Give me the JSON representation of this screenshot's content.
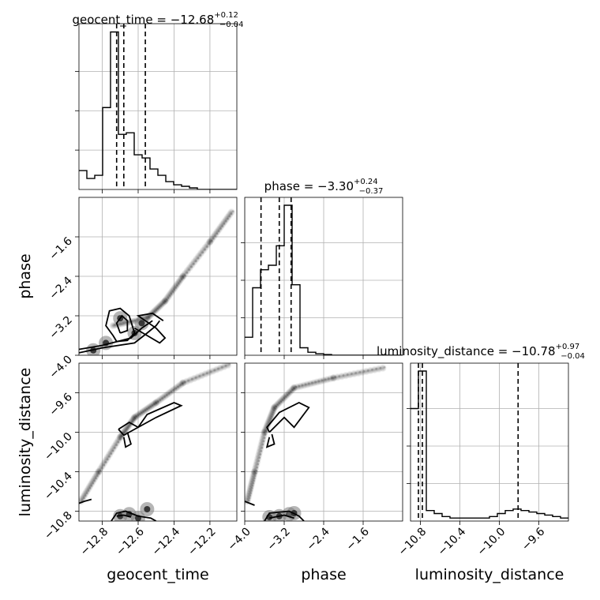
{
  "chart_data": {
    "type": "corner",
    "parameters": [
      "geocent_time",
      "phase",
      "luminosity_distance"
    ],
    "titles": [
      {
        "param": "geocent_time",
        "main": "geocent_time = −12.68",
        "plus": "+0.12",
        "minus": "−0.04"
      },
      {
        "param": "phase",
        "main": "phase = −3.30",
        "plus": "+0.24",
        "minus": "−0.37"
      },
      {
        "param": "luminosity_distance",
        "main": "luminosity_distance = −10.78",
        "plus": "+0.97",
        "minus": "−0.04"
      }
    ],
    "axes": {
      "geocent_time": {
        "range": [
          -12.93,
          -12.05
        ],
        "ticks": [
          -12.8,
          -12.6,
          -12.4,
          -12.2
        ],
        "tick_labels": [
          "−12.8",
          "−12.6",
          "−12.4",
          "−12.2"
        ]
      },
      "phase": {
        "range": [
          -4.0,
          -0.8
        ],
        "ticks": [
          -4.0,
          -3.2,
          -2.4,
          -1.6
        ],
        "tick_labels": [
          "−4.0",
          "−3.2",
          "−2.4",
          "−1.6"
        ]
      },
      "luminosity_distance": {
        "range": [
          -10.9,
          -9.3
        ],
        "ticks": [
          -10.8,
          -10.4,
          -10.0,
          -9.6
        ],
        "tick_labels": [
          "−10.8",
          "−10.4",
          "−10.0",
          "−9.6"
        ]
      }
    },
    "histograms": {
      "geocent_time": {
        "edges": [
          -12.93,
          -12.886,
          -12.842,
          -12.798,
          -12.754,
          -12.71,
          -12.666,
          -12.622,
          -12.578,
          -12.534,
          -12.49,
          -12.446,
          -12.402,
          -12.358,
          -12.314,
          -12.27,
          -12.226,
          -12.182,
          -12.138,
          -12.094,
          -12.05
        ],
        "counts": [
          0.12,
          0.07,
          0.09,
          0.52,
          1.0,
          0.35,
          0.36,
          0.22,
          0.2,
          0.13,
          0.09,
          0.05,
          0.03,
          0.02,
          0.01,
          0.0,
          0.0,
          0.0,
          0.0,
          0.0
        ],
        "quantiles": [
          -12.72,
          -12.68,
          -12.56
        ]
      },
      "phase": {
        "edges": [
          -4.0,
          -3.84,
          -3.68,
          -3.52,
          -3.36,
          -3.2,
          -3.04,
          -2.88,
          -2.72,
          -2.56,
          -2.4,
          -2.24,
          -2.08,
          -1.92,
          -1.76,
          -1.6,
          -1.44,
          -1.28,
          -1.12,
          -0.96,
          -0.8
        ],
        "counts": [
          0.12,
          0.45,
          0.57,
          0.6,
          0.73,
          1.0,
          0.47,
          0.05,
          0.02,
          0.01,
          0.005,
          0.0,
          0.0,
          0.0,
          0.0,
          0.0,
          0.0,
          0.0,
          0.0,
          0.0
        ],
        "quantiles": [
          -3.67,
          -3.3,
          -3.06
        ]
      },
      "luminosity_distance": {
        "edges": [
          -10.9,
          -10.82,
          -10.74,
          -10.66,
          -10.58,
          -10.5,
          -10.42,
          -10.34,
          -10.26,
          -10.18,
          -10.1,
          -10.02,
          -9.94,
          -9.86,
          -9.78,
          -9.7,
          -9.62,
          -9.54,
          -9.46,
          -9.38,
          -9.3
        ],
        "counts": [
          0.75,
          1.0,
          0.07,
          0.05,
          0.03,
          0.02,
          0.02,
          0.02,
          0.02,
          0.02,
          0.03,
          0.05,
          0.07,
          0.08,
          0.07,
          0.06,
          0.05,
          0.04,
          0.03,
          0.02
        ],
        "quantiles": [
          -10.82,
          -10.78,
          -9.81
        ]
      }
    },
    "scatter_clouds": [
      {
        "x_param": "geocent_time",
        "y_param": "phase",
        "trend": [
          [
            -12.74,
            -3.4
          ],
          [
            -12.55,
            -3.25
          ],
          [
            -12.45,
            -2.9
          ],
          [
            -12.35,
            -2.4
          ],
          [
            -12.2,
            -1.7
          ],
          [
            -12.08,
            -1.1
          ]
        ],
        "core_points": [
          [
            -12.7,
            -3.25
          ],
          [
            -12.62,
            -3.55
          ],
          [
            -12.58,
            -3.35
          ],
          [
            -12.78,
            -3.75
          ],
          [
            -12.85,
            -3.9
          ]
        ]
      },
      {
        "x_param": "geocent_time",
        "y_param": "luminosity_distance",
        "trend": [
          [
            -12.92,
            -10.7
          ],
          [
            -12.82,
            -10.4
          ],
          [
            -12.7,
            -10.05
          ],
          [
            -12.62,
            -9.85
          ],
          [
            -12.5,
            -9.7
          ],
          [
            -12.35,
            -9.5
          ],
          [
            -12.1,
            -9.32
          ]
        ],
        "core_points": [
          [
            -12.7,
            -10.85
          ],
          [
            -12.65,
            -10.83
          ],
          [
            -12.55,
            -10.78
          ],
          [
            -12.6,
            -10.87
          ]
        ]
      },
      {
        "x_param": "phase",
        "y_param": "luminosity_distance",
        "trend": [
          [
            -3.95,
            -10.7
          ],
          [
            -3.8,
            -10.4
          ],
          [
            -3.6,
            -10.0
          ],
          [
            -3.4,
            -9.75
          ],
          [
            -3.0,
            -9.55
          ],
          [
            -2.2,
            -9.45
          ],
          [
            -1.2,
            -9.35
          ]
        ],
        "core_points": [
          [
            -3.3,
            -10.85
          ],
          [
            -3.1,
            -10.83
          ],
          [
            -3.5,
            -10.86
          ],
          [
            -3.0,
            -10.82
          ]
        ]
      }
    ],
    "contours": [
      {
        "x_param": "geocent_time",
        "y_param": "phase",
        "paths": [
          [
            [
              -12.74,
              -3.6
            ],
            [
              -12.78,
              -3.4
            ],
            [
              -12.76,
              -3.1
            ],
            [
              -12.7,
              -3.05
            ],
            [
              -12.65,
              -3.2
            ],
            [
              -12.62,
              -3.55
            ],
            [
              -12.66,
              -3.7
            ],
            [
              -12.72,
              -3.72
            ],
            [
              -12.74,
              -3.6
            ]
          ],
          [
            [
              -12.7,
              -3.55
            ],
            [
              -12.72,
              -3.35
            ],
            [
              -12.69,
              -3.2
            ],
            [
              -12.66,
              -3.3
            ],
            [
              -12.66,
              -3.5
            ],
            [
              -12.7,
              -3.55
            ]
          ],
          [
            [
              -12.93,
              -3.95
            ],
            [
              -12.8,
              -3.85
            ],
            [
              -12.62,
              -3.75
            ],
            [
              -12.55,
              -3.55
            ],
            [
              -12.5,
              -3.4
            ],
            [
              -12.48,
              -3.3
            ]
          ],
          [
            [
              -12.93,
              -3.88
            ],
            [
              -12.8,
              -3.8
            ],
            [
              -12.64,
              -3.65
            ],
            [
              -12.58,
              -3.45
            ],
            [
              -12.52,
              -3.3
            ]
          ],
          [
            [
              -12.62,
              -3.45
            ],
            [
              -12.55,
              -3.6
            ],
            [
              -12.48,
              -3.75
            ],
            [
              -12.45,
              -3.65
            ],
            [
              -12.5,
              -3.45
            ],
            [
              -12.6,
              -3.2
            ],
            [
              -12.52,
              -3.15
            ],
            [
              -12.46,
              -3.3
            ]
          ]
        ]
      },
      {
        "x_param": "geocent_time",
        "y_param": "luminosity_distance",
        "paths": [
          [
            [
              -12.71,
              -9.97
            ],
            [
              -12.65,
              -9.9
            ],
            [
              -12.6,
              -9.95
            ],
            [
              -12.55,
              -9.82
            ],
            [
              -12.4,
              -9.7
            ],
            [
              -12.36,
              -9.73
            ],
            [
              -12.5,
              -9.85
            ],
            [
              -12.62,
              -9.97
            ],
            [
              -12.68,
              -10.03
            ],
            [
              -12.71,
              -9.97
            ]
          ],
          [
            [
              -12.68,
              -10.05
            ],
            [
              -12.67,
              -10.15
            ],
            [
              -12.64,
              -10.12
            ],
            [
              -12.66,
              -10.0
            ]
          ],
          [
            [
              -12.93,
              -10.72
            ],
            [
              -12.9,
              -10.7
            ],
            [
              -12.86,
              -10.68
            ]
          ],
          [
            [
              -12.75,
              -10.9
            ],
            [
              -12.72,
              -10.82
            ],
            [
              -12.67,
              -10.8
            ],
            [
              -12.6,
              -10.85
            ],
            [
              -12.53,
              -10.87
            ],
            [
              -12.5,
              -10.9
            ]
          ],
          [
            [
              -12.72,
              -10.85
            ],
            [
              -12.68,
              -10.84
            ],
            [
              -12.64,
              -10.86
            ]
          ]
        ]
      },
      {
        "x_param": "phase",
        "y_param": "luminosity_distance",
        "paths": [
          [
            [
              -3.5,
              -10.0
            ],
            [
              -3.2,
              -9.85
            ],
            [
              -3.0,
              -9.95
            ],
            [
              -2.7,
              -9.75
            ],
            [
              -2.9,
              -9.7
            ],
            [
              -3.3,
              -9.8
            ],
            [
              -3.55,
              -9.95
            ],
            [
              -3.5,
              -10.0
            ]
          ],
          [
            [
              -3.5,
              -10.05
            ],
            [
              -3.55,
              -10.15
            ],
            [
              -3.4,
              -10.12
            ],
            [
              -3.45,
              -10.02
            ]
          ],
          [
            [
              -4.0,
              -10.7
            ],
            [
              -3.9,
              -10.72
            ],
            [
              -3.8,
              -10.74
            ]
          ],
          [
            [
              -3.6,
              -10.9
            ],
            [
              -3.5,
              -10.82
            ],
            [
              -3.1,
              -10.8
            ],
            [
              -2.9,
              -10.85
            ],
            [
              -2.8,
              -10.9
            ]
          ],
          [
            [
              -3.5,
              -10.87
            ],
            [
              -3.2,
              -10.84
            ],
            [
              -3.0,
              -10.87
            ]
          ]
        ]
      }
    ]
  },
  "labels": {
    "x_axis": [
      "geocent_time",
      "phase",
      "luminosity_distance"
    ],
    "y_axis": [
      "phase",
      "luminosity_distance"
    ]
  }
}
